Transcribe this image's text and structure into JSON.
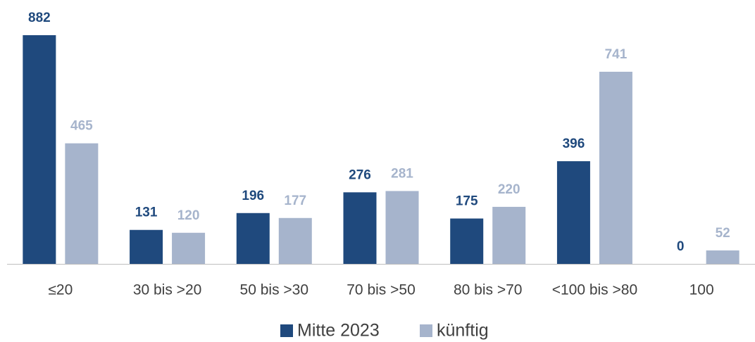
{
  "chart_data": {
    "type": "bar",
    "categories": [
      "≤20",
      "30 bis >20",
      "50 bis >30",
      "70 bis >50",
      "80 bis >70",
      "<100 bis >80",
      "100"
    ],
    "series": [
      {
        "name": "Mitte 2023",
        "color": "#1f497d",
        "values": [
          882,
          131,
          196,
          276,
          175,
          396,
          0
        ]
      },
      {
        "name": "künftig",
        "color": "#a6b4cc",
        "values": [
          465,
          120,
          177,
          281,
          220,
          741,
          52
        ]
      }
    ],
    "legend": "bottom"
  }
}
